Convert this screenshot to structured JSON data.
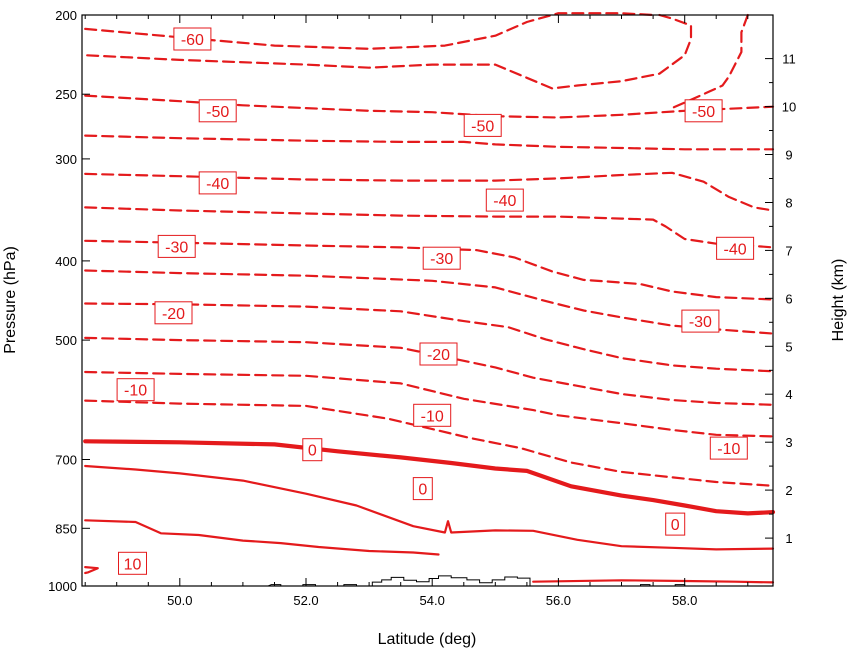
{
  "chart_data": {
    "type": "line",
    "subtype": "contour",
    "xlabel": "Latitude (deg)",
    "ylabel_left": "Pressure (hPa)",
    "ylabel_right": "Height (km)",
    "xlim": [
      48.45,
      59.4
    ],
    "ylim_pressure": [
      1000,
      200
    ],
    "y_scale": "log",
    "x_ticks": [
      "50.0",
      "52.0",
      "54.0",
      "56.0",
      "58.0"
    ],
    "x_tick_values": [
      50,
      52,
      54,
      56,
      58
    ],
    "p_ticks": [
      "200",
      "250",
      "300",
      "400",
      "500",
      "700",
      "850",
      "1000"
    ],
    "p_tick_values": [
      200,
      250,
      300,
      400,
      500,
      700,
      850,
      1000
    ],
    "h_ticks": [
      "1",
      "2",
      "3",
      "4",
      "5",
      "6",
      "7",
      "8",
      "9",
      "10",
      "11"
    ],
    "h_tick_values": [
      1,
      2,
      3,
      4,
      5,
      6,
      7,
      8,
      9,
      10,
      11
    ],
    "line_color": "#e41a1c",
    "terrain_color": "#000000",
    "contours": [
      {
        "level": -60,
        "points": [
          [
            48.5,
            208
          ],
          [
            50,
            213
          ],
          [
            51.5,
            218
          ],
          [
            53,
            220
          ],
          [
            54.2,
            218
          ],
          [
            55,
            212
          ],
          [
            55.5,
            204
          ],
          [
            56,
            199
          ],
          [
            57,
            199
          ],
          [
            57.5,
            200
          ]
        ]
      },
      {
        "level": -60,
        "points": [
          [
            57.6,
            200
          ],
          [
            57.8,
            202
          ],
          [
            58.1,
            206
          ],
          [
            58.1,
            214
          ],
          [
            58.0,
            224
          ],
          [
            57.6,
            236
          ],
          [
            57,
            241
          ],
          [
            56.3,
            244
          ],
          [
            55.9,
            246
          ],
          [
            55.4,
            237
          ],
          [
            55,
            230
          ],
          [
            54.5,
            230
          ],
          [
            54,
            230
          ],
          [
            53,
            232
          ],
          [
            52,
            230
          ],
          [
            50,
            227
          ],
          [
            48.5,
            224
          ]
        ]
      },
      {
        "level": -60,
        "points": [
          [
            59.0,
            200
          ],
          [
            58.9,
            210
          ],
          [
            58.9,
            222
          ],
          [
            58.7,
            238
          ],
          [
            58.6,
            244
          ],
          [
            58.4,
            248
          ],
          [
            58.1,
            254
          ],
          [
            57.8,
            260
          ]
        ]
      },
      {
        "level": -50,
        "points": [
          [
            48.5,
            251
          ],
          [
            50,
            255
          ],
          [
            51,
            258
          ],
          [
            52,
            260
          ],
          [
            53,
            262
          ],
          [
            54,
            263
          ],
          [
            55,
            266
          ],
          [
            56,
            267
          ],
          [
            57,
            265
          ],
          [
            58,
            262
          ],
          [
            59.4,
            259
          ]
        ]
      },
      {
        "level": -50,
        "points": [
          [
            48.5,
            281
          ],
          [
            50,
            283
          ],
          [
            52,
            285
          ],
          [
            53.5,
            286
          ],
          [
            54.5,
            286
          ],
          [
            55,
            288
          ],
          [
            56,
            290
          ],
          [
            57,
            291
          ],
          [
            58,
            292
          ],
          [
            59.4,
            292
          ]
        ]
      },
      {
        "level": -40,
        "points": [
          [
            48.5,
            313
          ],
          [
            50,
            315
          ],
          [
            52,
            318
          ],
          [
            53.5,
            319
          ],
          [
            55,
            319
          ],
          [
            56,
            317
          ],
          [
            57,
            314
          ],
          [
            57.8,
            312
          ],
          [
            58.3,
            320
          ],
          [
            58.7,
            334
          ],
          [
            59.1,
            344
          ],
          [
            59.4,
            347
          ]
        ]
      },
      {
        "level": -40,
        "points": [
          [
            48.5,
            344
          ],
          [
            50,
            347
          ],
          [
            52,
            350
          ],
          [
            53.5,
            352
          ],
          [
            55,
            353
          ],
          [
            56,
            353
          ],
          [
            57,
            355
          ],
          [
            57.5,
            356
          ],
          [
            57.7,
            363
          ],
          [
            58,
            376
          ],
          [
            58.5,
            381
          ],
          [
            59,
            383
          ],
          [
            59.4,
            385
          ]
        ]
      },
      {
        "level": -30,
        "points": [
          [
            48.5,
            378
          ],
          [
            50,
            380
          ],
          [
            52,
            383
          ],
          [
            53.5,
            385
          ],
          [
            54.7,
            388
          ],
          [
            55.3,
            396
          ],
          [
            55.9,
            412
          ],
          [
            56.4,
            422
          ],
          [
            56.8,
            424
          ],
          [
            57.3,
            427
          ],
          [
            57.8,
            436
          ],
          [
            58.5,
            443
          ],
          [
            59.4,
            446
          ]
        ]
      },
      {
        "level": -30,
        "points": [
          [
            48.5,
            411
          ],
          [
            50,
            414
          ],
          [
            52,
            417
          ],
          [
            54,
            423
          ],
          [
            55,
            431
          ],
          [
            55.8,
            448
          ],
          [
            56.4,
            460
          ],
          [
            57,
            469
          ],
          [
            57.8,
            480
          ],
          [
            58.5,
            485
          ],
          [
            59.4,
            491
          ]
        ]
      },
      {
        "level": -20,
        "points": [
          [
            48.5,
            451
          ],
          [
            50,
            452
          ],
          [
            52,
            455
          ],
          [
            53.5,
            461
          ],
          [
            54.5,
            474
          ],
          [
            55.2,
            482
          ],
          [
            55.8,
            499
          ],
          [
            56.4,
            513
          ],
          [
            57,
            526
          ],
          [
            57.8,
            537
          ],
          [
            58.5,
            542
          ],
          [
            59.4,
            546
          ]
        ]
      },
      {
        "level": -20,
        "points": [
          [
            48.5,
            497
          ],
          [
            50,
            500
          ],
          [
            52,
            503
          ],
          [
            53.5,
            511
          ],
          [
            54.5,
            530
          ],
          [
            55,
            540
          ],
          [
            55.6,
            556
          ],
          [
            56.2,
            567
          ],
          [
            57,
            582
          ],
          [
            57.8,
            592
          ],
          [
            58.5,
            597
          ],
          [
            59.4,
            600
          ]
        ]
      },
      {
        "level": -10,
        "points": [
          [
            48.5,
            547
          ],
          [
            50,
            550
          ],
          [
            52,
            553
          ],
          [
            53.5,
            565
          ],
          [
            54.5,
            590
          ],
          [
            55.2,
            602
          ],
          [
            55.6,
            609
          ],
          [
            56,
            618
          ],
          [
            57,
            632
          ],
          [
            57.8,
            644
          ],
          [
            58.5,
            653
          ],
          [
            59.4,
            656
          ]
        ]
      },
      {
        "level": -10,
        "points": [
          [
            48.5,
            593
          ],
          [
            50,
            598
          ],
          [
            52,
            602
          ],
          [
            53.3,
            624
          ],
          [
            54.6,
            659
          ],
          [
            55.4,
            678
          ],
          [
            56.2,
            706
          ],
          [
            57,
            725
          ],
          [
            57.8,
            736
          ],
          [
            58.5,
            746
          ],
          [
            59.4,
            754
          ]
        ]
      },
      {
        "level": 0,
        "thick": true,
        "points": [
          [
            48.5,
            665
          ],
          [
            50,
            667
          ],
          [
            51.5,
            671
          ],
          [
            52.5,
            684
          ],
          [
            53.5,
            696
          ],
          [
            54.3,
            707
          ],
          [
            55,
            718
          ],
          [
            55.5,
            723
          ],
          [
            56.2,
            755
          ],
          [
            57,
            775
          ],
          [
            57.5,
            785
          ],
          [
            58,
            797
          ],
          [
            58.5,
            810
          ],
          [
            59,
            815
          ],
          [
            59.4,
            812
          ]
        ]
      },
      {
        "level": 0,
        "points": [
          [
            48.5,
            713
          ],
          [
            49.3,
            720
          ],
          [
            50,
            728
          ],
          [
            51,
            743
          ],
          [
            52,
            771
          ],
          [
            52.8,
            797
          ],
          [
            53.7,
            845
          ],
          [
            54.2,
            860
          ],
          [
            54.25,
            833
          ],
          [
            54.3,
            860
          ],
          [
            55,
            855
          ],
          [
            55.6,
            856
          ],
          [
            56.3,
            878
          ],
          [
            57,
            894
          ],
          [
            57.8,
            898
          ],
          [
            58.5,
            902
          ],
          [
            59.4,
            900
          ]
        ]
      },
      {
        "level": 0,
        "points": [
          [
            48.5,
            831
          ],
          [
            49.3,
            835
          ],
          [
            49.7,
            862
          ],
          [
            50.3,
            866
          ],
          [
            51,
            880
          ],
          [
            51.6,
            886
          ],
          [
            52.2,
            896
          ],
          [
            53,
            906
          ],
          [
            53.7,
            910
          ],
          [
            54.1,
            915
          ]
        ]
      },
      {
        "level": 10,
        "points": [
          [
            48.5,
            948
          ],
          [
            48.7,
            951
          ],
          [
            48.55,
            962
          ],
          [
            48.5,
            964
          ]
        ]
      },
      {
        "level": 10,
        "points": [
          [
            55.6,
            988
          ],
          [
            57,
            984
          ],
          [
            58,
            986
          ],
          [
            58.8,
            988
          ],
          [
            59.4,
            990
          ]
        ]
      }
    ],
    "contour_labels": [
      {
        "text": "-60",
        "x": 50.2,
        "p": 214
      },
      {
        "text": "-50",
        "x": 50.6,
        "p": 262
      },
      {
        "text": "-50",
        "x": 54.8,
        "p": 273
      },
      {
        "text": "-50",
        "x": 58.3,
        "p": 262
      },
      {
        "text": "-40",
        "x": 50.6,
        "p": 321
      },
      {
        "text": "-40",
        "x": 55.15,
        "p": 337
      },
      {
        "text": "-40",
        "x": 58.8,
        "p": 386
      },
      {
        "text": "-30",
        "x": 49.95,
        "p": 384
      },
      {
        "text": "-30",
        "x": 54.15,
        "p": 397
      },
      {
        "text": "-30",
        "x": 58.25,
        "p": 474
      },
      {
        "text": "-20",
        "x": 49.9,
        "p": 463
      },
      {
        "text": "-20",
        "x": 54.1,
        "p": 520
      },
      {
        "text": "-10",
        "x": 49.3,
        "p": 575
      },
      {
        "text": "-10",
        "x": 54.0,
        "p": 618
      },
      {
        "text": "-10",
        "x": 58.7,
        "p": 678
      },
      {
        "text": "0",
        "x": 52.1,
        "p": 681
      },
      {
        "text": "0",
        "x": 53.85,
        "p": 760
      },
      {
        "text": "0",
        "x": 57.85,
        "p": 840
      },
      {
        "text": "10",
        "x": 49.25,
        "p": 938
      }
    ],
    "terrain_profile": [
      [
        51.4,
        1000
      ],
      [
        51.45,
        996
      ],
      [
        51.6,
        996
      ],
      [
        51.6,
        1000
      ],
      [
        51.95,
        1000
      ],
      [
        51.95,
        996
      ],
      [
        52.15,
        996
      ],
      [
        52.15,
        1000
      ],
      [
        52.6,
        1000
      ],
      [
        52.6,
        996
      ],
      [
        52.8,
        996
      ],
      [
        52.8,
        1000
      ],
      [
        53.05,
        1000
      ],
      [
        53.05,
        989
      ],
      [
        53.2,
        989
      ],
      [
        53.2,
        983
      ],
      [
        53.35,
        983
      ],
      [
        53.35,
        976
      ],
      [
        53.55,
        976
      ],
      [
        53.55,
        984
      ],
      [
        53.75,
        984
      ],
      [
        53.75,
        988
      ],
      [
        53.95,
        988
      ],
      [
        53.95,
        979
      ],
      [
        54.1,
        979
      ],
      [
        54.1,
        972
      ],
      [
        54.3,
        972
      ],
      [
        54.3,
        977
      ],
      [
        54.55,
        977
      ],
      [
        54.55,
        983
      ],
      [
        54.75,
        983
      ],
      [
        54.75,
        991
      ],
      [
        54.95,
        991
      ],
      [
        54.95,
        983
      ],
      [
        55.15,
        983
      ],
      [
        55.15,
        975
      ],
      [
        55.35,
        975
      ],
      [
        55.35,
        978
      ],
      [
        55.55,
        978
      ],
      [
        55.55,
        1000
      ],
      [
        57.3,
        1000
      ],
      [
        57.3,
        996
      ],
      [
        57.45,
        996
      ],
      [
        57.45,
        1000
      ],
      [
        57.85,
        1000
      ],
      [
        57.85,
        996
      ],
      [
        58.0,
        996
      ],
      [
        58.0,
        1000
      ]
    ]
  }
}
